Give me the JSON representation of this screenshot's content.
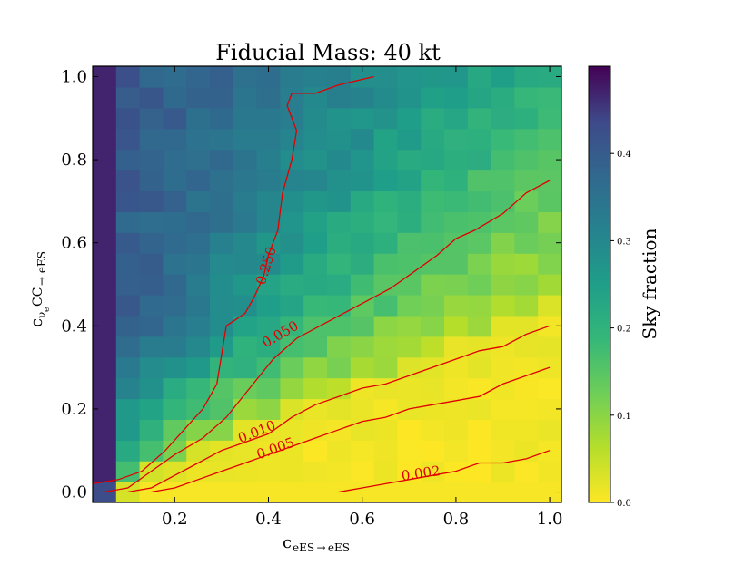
{
  "chart_data": {
    "type": "heatmap",
    "title": "Fiducial Mass: 40 kt",
    "xlabel": {
      "main": "c",
      "sub": "eES → eES"
    },
    "ylabel": {
      "main": "c",
      "sub_nu": "ν",
      "sub_e": "e",
      "sub_rest": "CC → eES"
    },
    "xlim": [
      0.025,
      1.025
    ],
    "ylim": [
      -0.025,
      1.025
    ],
    "x_ticks": [
      0.2,
      0.4,
      0.6,
      0.8,
      1.0
    ],
    "x_tick_labels": [
      "0.2",
      "0.4",
      "0.6",
      "0.8",
      "1.0"
    ],
    "y_ticks": [
      0.0,
      0.2,
      0.4,
      0.6,
      0.8,
      1.0
    ],
    "y_tick_labels": [
      "0.0",
      "0.2",
      "0.4",
      "0.6",
      "0.8",
      "1.0"
    ],
    "grid_step": 0.05,
    "colorbar": {
      "label": "Sky fraction",
      "range": [
        0.0,
        0.5
      ],
      "ticks": [
        0.0,
        0.1,
        0.2,
        0.3,
        0.4
      ],
      "tick_labels": [
        "0.0",
        "0.1",
        "0.2",
        "0.3",
        "0.4"
      ],
      "colormap": "viridis_r"
    },
    "contour_color": "#e00000",
    "contours": [
      {
        "level": "0.250",
        "label_at": [
          0.395,
          0.545
        ],
        "label_angle": -73,
        "points": [
          [
            0.025,
            0.02
          ],
          [
            0.08,
            0.03
          ],
          [
            0.13,
            0.05
          ],
          [
            0.18,
            0.1
          ],
          [
            0.22,
            0.15
          ],
          [
            0.26,
            0.2
          ],
          [
            0.29,
            0.26
          ],
          [
            0.3,
            0.33
          ],
          [
            0.31,
            0.4
          ],
          [
            0.35,
            0.43
          ],
          [
            0.37,
            0.47
          ],
          [
            0.39,
            0.52
          ],
          [
            0.4,
            0.57
          ],
          [
            0.42,
            0.63
          ],
          [
            0.43,
            0.72
          ],
          [
            0.45,
            0.8
          ],
          [
            0.46,
            0.87
          ],
          [
            0.44,
            0.93
          ],
          [
            0.45,
            0.96
          ],
          [
            0.5,
            0.96
          ],
          [
            0.55,
            0.98
          ],
          [
            0.625,
            1.0
          ]
        ]
      },
      {
        "level": "0.050",
        "label_at": [
          0.425,
          0.38
        ],
        "label_angle": -30,
        "points": [
          [
            0.05,
            0.0
          ],
          [
            0.1,
            0.01
          ],
          [
            0.15,
            0.05
          ],
          [
            0.2,
            0.09
          ],
          [
            0.26,
            0.13
          ],
          [
            0.31,
            0.18
          ],
          [
            0.36,
            0.25
          ],
          [
            0.41,
            0.32
          ],
          [
            0.46,
            0.37
          ],
          [
            0.51,
            0.4
          ],
          [
            0.56,
            0.43
          ],
          [
            0.61,
            0.46
          ],
          [
            0.66,
            0.49
          ],
          [
            0.71,
            0.53
          ],
          [
            0.76,
            0.57
          ],
          [
            0.8,
            0.61
          ],
          [
            0.84,
            0.63
          ],
          [
            0.9,
            0.67
          ],
          [
            0.95,
            0.72
          ],
          [
            1.0,
            0.75
          ]
        ]
      },
      {
        "level": "0.010",
        "label_at": [
          0.375,
          0.145
        ],
        "label_angle": -22,
        "points": [
          [
            0.1,
            0.0
          ],
          [
            0.15,
            0.01
          ],
          [
            0.2,
            0.04
          ],
          [
            0.25,
            0.07
          ],
          [
            0.3,
            0.1
          ],
          [
            0.35,
            0.12
          ],
          [
            0.4,
            0.14
          ],
          [
            0.45,
            0.18
          ],
          [
            0.5,
            0.21
          ],
          [
            0.55,
            0.23
          ],
          [
            0.6,
            0.25
          ],
          [
            0.65,
            0.26
          ],
          [
            0.7,
            0.28
          ],
          [
            0.75,
            0.3
          ],
          [
            0.8,
            0.32
          ],
          [
            0.85,
            0.34
          ],
          [
            0.9,
            0.35
          ],
          [
            0.95,
            0.38
          ],
          [
            1.0,
            0.4
          ]
        ]
      },
      {
        "level": "0.005",
        "label_at": [
          0.415,
          0.105
        ],
        "label_angle": -20,
        "points": [
          [
            0.15,
            0.0
          ],
          [
            0.2,
            0.01
          ],
          [
            0.25,
            0.03
          ],
          [
            0.3,
            0.05
          ],
          [
            0.35,
            0.07
          ],
          [
            0.4,
            0.09
          ],
          [
            0.45,
            0.11
          ],
          [
            0.5,
            0.13
          ],
          [
            0.55,
            0.15
          ],
          [
            0.6,
            0.17
          ],
          [
            0.65,
            0.18
          ],
          [
            0.7,
            0.2
          ],
          [
            0.75,
            0.21
          ],
          [
            0.8,
            0.22
          ],
          [
            0.85,
            0.23
          ],
          [
            0.9,
            0.26
          ],
          [
            0.95,
            0.28
          ],
          [
            1.0,
            0.3
          ]
        ]
      },
      {
        "level": "0.002",
        "label_at": [
          0.725,
          0.045
        ],
        "label_angle": -8,
        "points": [
          [
            0.55,
            0.0
          ],
          [
            0.6,
            0.01
          ],
          [
            0.65,
            0.02
          ],
          [
            0.7,
            0.03
          ],
          [
            0.75,
            0.04
          ],
          [
            0.8,
            0.05
          ],
          [
            0.85,
            0.07
          ],
          [
            0.9,
            0.07
          ],
          [
            0.95,
            0.08
          ],
          [
            1.0,
            0.1
          ]
        ]
      }
    ]
  }
}
